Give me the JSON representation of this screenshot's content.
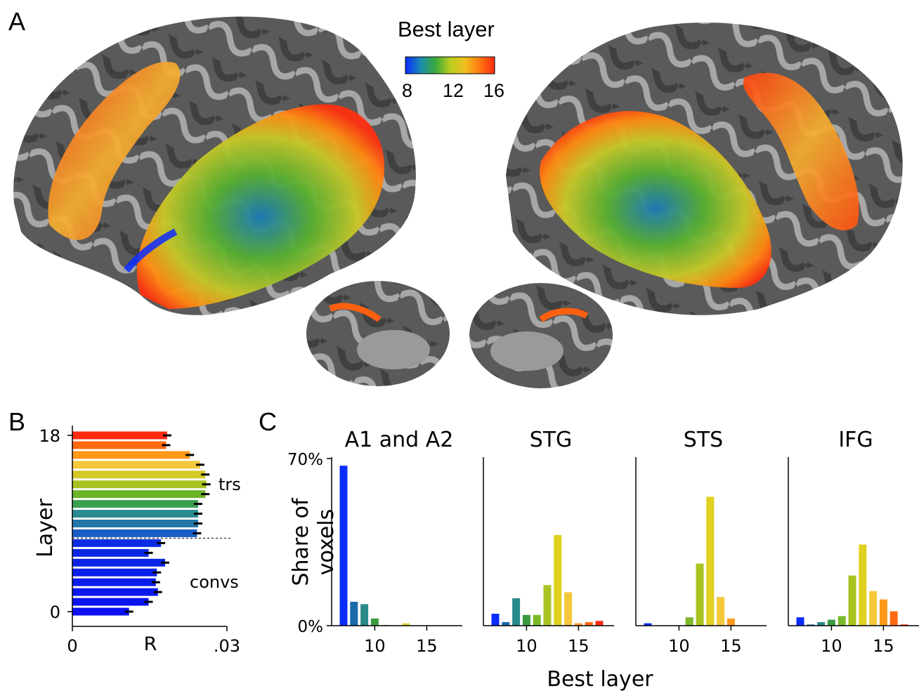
{
  "panels": {
    "a": "A",
    "b": "B",
    "c": "C"
  },
  "colorbar": {
    "title": "Best layer",
    "ticks": [
      "8",
      "12",
      "16"
    ],
    "stops": [
      "#0a2cff",
      "#1a8ab0",
      "#3aaa3a",
      "#b8cc20",
      "#f0c020",
      "#ff7a10",
      "#ff2a10"
    ]
  },
  "chart_data": [
    {
      "type": "bar",
      "orientation": "horizontal",
      "title": "",
      "xlabel": "R",
      "ylabel": "Layer",
      "xlim": [
        0,
        0.03
      ],
      "xtick_labels": [
        "0",
        ".03"
      ],
      "ytick_labels": [
        "0",
        "18"
      ],
      "layers": [
        0,
        1,
        2,
        3,
        4,
        5,
        6,
        7,
        8,
        9,
        10,
        11,
        12,
        13,
        14,
        15,
        16,
        17,
        18
      ],
      "values": [
        0.011,
        0.0148,
        0.0166,
        0.0162,
        0.0164,
        0.018,
        0.0148,
        0.0172,
        0.0242,
        0.0244,
        0.0244,
        0.0244,
        0.0258,
        0.026,
        0.0258,
        0.0248,
        0.0228,
        0.0182,
        0.0184
      ],
      "colors": [
        "#0a10f0",
        "#0a14ee",
        "#0a18ec",
        "#0a1cea",
        "#0a20e8",
        "#0a24e6",
        "#0a28e4",
        "#0a2ce2",
        "#1a5ec8",
        "#2278a8",
        "#2a8a90",
        "#38a050",
        "#6cb428",
        "#a8c420",
        "#d4c828",
        "#f4c83a",
        "#ff9818",
        "#ff6a10",
        "#ff2a10"
      ],
      "annotations": [
        "trs",
        "convs"
      ],
      "divider_after_layer": 7
    },
    {
      "type": "bar",
      "title": "A1 and A2",
      "ylabel": "Share of voxels",
      "ytick_labels": [
        "0%",
        "70%"
      ],
      "ylim": [
        0,
        70
      ],
      "x": [
        7,
        8,
        9,
        10,
        11,
        12,
        13,
        14,
        15,
        16,
        17
      ],
      "values": [
        67,
        10,
        9,
        3,
        0.3,
        0.2,
        1,
        0,
        0,
        0,
        0
      ],
      "colors": [
        "#0a2cff",
        "#1a6aa8",
        "#2a8a8a",
        "#3a9a40",
        "#7ab828",
        "#a8c420",
        "#e0d020",
        "#f4c83a",
        "#ff9818",
        "#ff6a10",
        "#ff2a10"
      ]
    },
    {
      "type": "bar",
      "title": "STG",
      "x": [
        7,
        8,
        9,
        10,
        11,
        12,
        13,
        14,
        15,
        16,
        17
      ],
      "values": [
        5,
        1.5,
        11.5,
        4.5,
        4.5,
        17,
        38,
        14,
        1,
        1.5,
        2
      ],
      "colors": [
        "#0a2cff",
        "#1a6aa8",
        "#2a8a8a",
        "#3a9a40",
        "#7ab828",
        "#a8c420",
        "#e0d020",
        "#f4c83a",
        "#ff9818",
        "#ff6a10",
        "#ff2a10"
      ]
    },
    {
      "type": "bar",
      "title": "STS",
      "x": [
        7,
        8,
        9,
        10,
        11,
        12,
        13,
        14,
        15,
        16,
        17
      ],
      "values": [
        1,
        0,
        0,
        0,
        3.5,
        26,
        54,
        12,
        3,
        0,
        0
      ],
      "colors": [
        "#0a2cff",
        "#1a6aa8",
        "#2a8a8a",
        "#3a9a40",
        "#7ab828",
        "#a8c420",
        "#e0d020",
        "#f4c83a",
        "#ff9818",
        "#ff6a10",
        "#ff2a10"
      ]
    },
    {
      "type": "bar",
      "title": "IFG",
      "x": [
        7,
        8,
        9,
        10,
        11,
        12,
        13,
        14,
        15,
        16,
        17
      ],
      "values": [
        3.5,
        0.5,
        1.5,
        2.5,
        4,
        21,
        34,
        14.5,
        11,
        6,
        0.5
      ],
      "colors": [
        "#0a2cff",
        "#1a6aa8",
        "#2a8a8a",
        "#3a9a40",
        "#7ab828",
        "#a8c420",
        "#e0d020",
        "#f4c83a",
        "#ff9818",
        "#ff6a10",
        "#ff2a10"
      ]
    }
  ],
  "panel_c_axis": {
    "xlabel": "Best layer",
    "xtick_labels": [
      "10",
      "15"
    ]
  }
}
